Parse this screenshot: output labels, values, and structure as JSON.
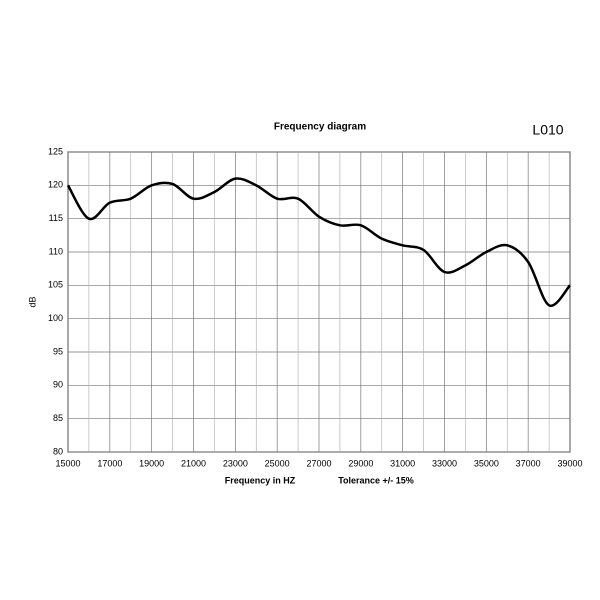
{
  "chart_data": {
    "type": "line",
    "title": "Frequency diagram",
    "annotation": "L010",
    "x_label": "Frequency in  HZ",
    "note": "Tolerance +/- 15%",
    "y_label": "dB",
    "x": [
      15000,
      16000,
      17000,
      18000,
      19000,
      20000,
      21000,
      22000,
      23000,
      24000,
      25000,
      26000,
      27000,
      28000,
      29000,
      30000,
      31000,
      32000,
      33000,
      34000,
      35000,
      36000,
      37000,
      38000,
      39000
    ],
    "series": [
      {
        "color": "#000000",
        "values": [
          120,
          115,
          117.4,
          118,
          120,
          120.2,
          118,
          119,
          121,
          120,
          118,
          118,
          115.3,
          114,
          114,
          112,
          111,
          110.3,
          107,
          108,
          110,
          111,
          108.5,
          102,
          105
        ]
      }
    ],
    "xlim": [
      15000,
      39000
    ],
    "xticks": [
      15000,
      17000,
      19000,
      21000,
      23000,
      25000,
      27000,
      29000,
      31000,
      33000,
      35000,
      37000,
      39000
    ],
    "x_minor_gridlines": [
      16000,
      18000,
      20000,
      22000,
      24000,
      26000,
      28000,
      30000,
      32000,
      34000,
      36000,
      38000
    ],
    "ylim": [
      80,
      125
    ],
    "yticks": [
      80,
      85,
      90,
      95,
      100,
      105,
      110,
      115,
      120,
      125
    ],
    "grid": true
  }
}
